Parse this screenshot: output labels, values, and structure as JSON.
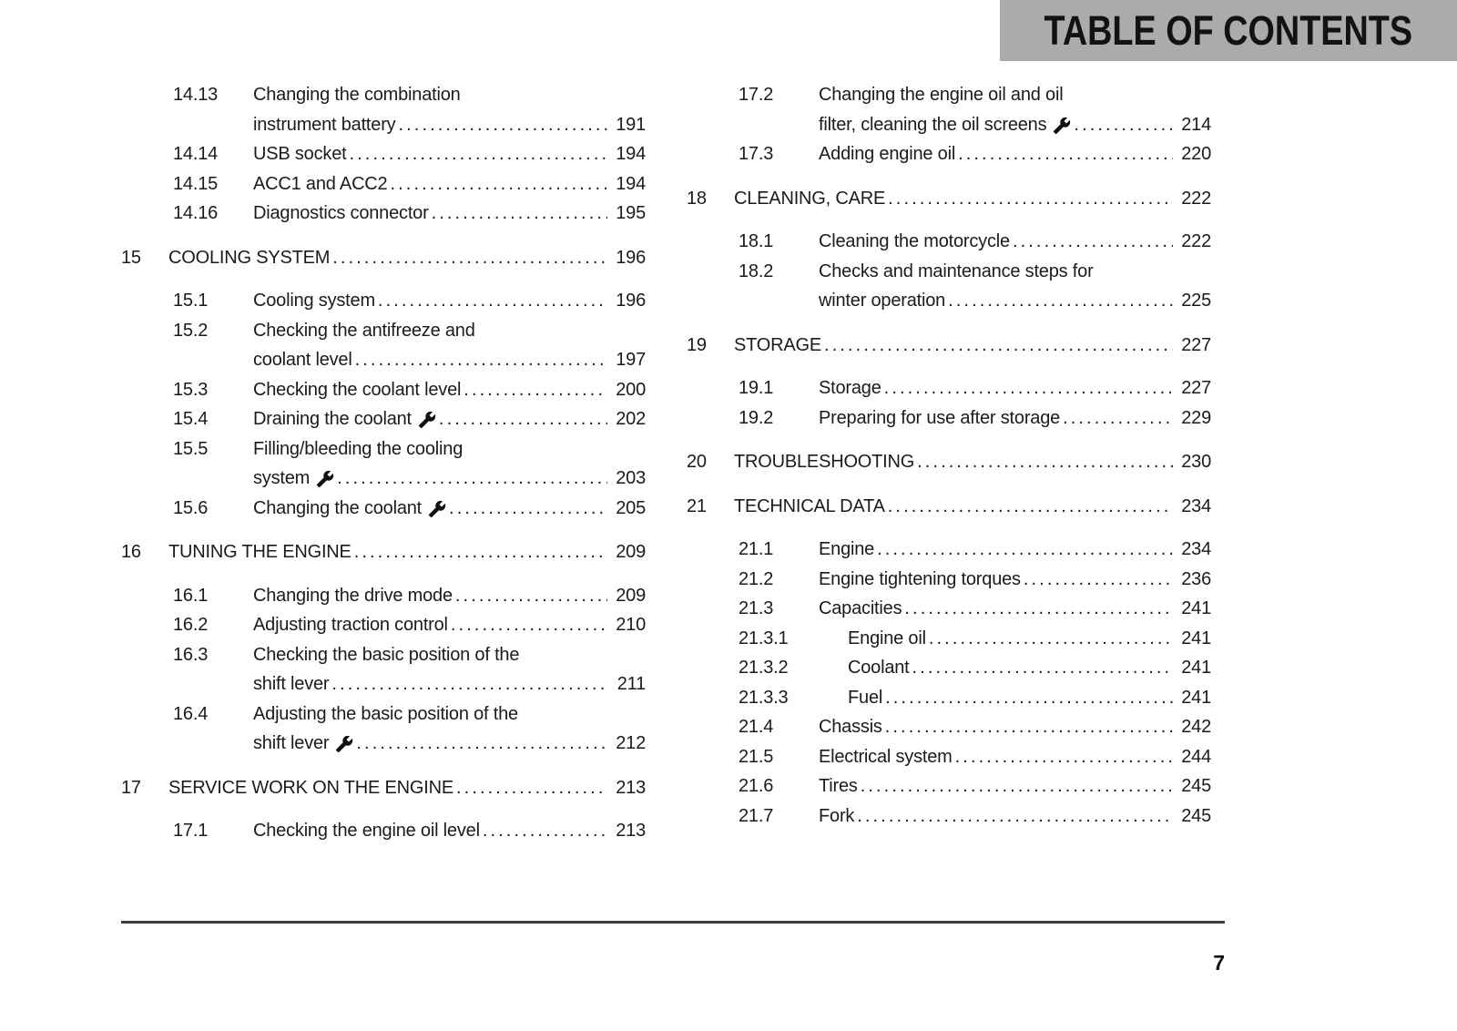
{
  "header": {
    "title": "TABLE OF CONTENTS"
  },
  "page_number": "7",
  "colors": {
    "banner_bg": "#ABABAB",
    "banner_text": "#121212",
    "body_text": "#1B1B1B",
    "rule": "#3D3D3D"
  },
  "icons": {
    "wrench_icon": "open-end-wrench (service work marker)"
  },
  "columns": {
    "left": [
      {
        "level": "sub",
        "num": "14.13",
        "lines": [
          "Changing the combination",
          "instrument battery"
        ],
        "page": "191",
        "wrench": false
      },
      {
        "level": "sub",
        "num": "14.14",
        "lines": [
          "USB socket"
        ],
        "page": "194",
        "wrench": false
      },
      {
        "level": "sub",
        "num": "14.15",
        "lines": [
          "ACC1 and ACC2"
        ],
        "page": "194",
        "wrench": false
      },
      {
        "level": "sub",
        "num": "14.16",
        "lines": [
          "Diagnostics connector"
        ],
        "page": "195",
        "wrench": false
      },
      {
        "level": "section",
        "num": "15",
        "lines": [
          "COOLING SYSTEM"
        ],
        "page": "196",
        "wrench": false
      },
      {
        "level": "sub",
        "num": "15.1",
        "lines": [
          "Cooling system"
        ],
        "page": "196",
        "wrench": false
      },
      {
        "level": "sub",
        "num": "15.2",
        "lines": [
          "Checking the antifreeze and",
          "coolant level"
        ],
        "page": "197",
        "wrench": false
      },
      {
        "level": "sub",
        "num": "15.3",
        "lines": [
          "Checking the coolant level"
        ],
        "page": "200",
        "wrench": false
      },
      {
        "level": "sub",
        "num": "15.4",
        "lines": [
          "Draining the coolant"
        ],
        "page": "202",
        "wrench": true
      },
      {
        "level": "sub",
        "num": "15.5",
        "lines": [
          "Filling/bleeding the cooling",
          "system"
        ],
        "page": "203",
        "wrench": true
      },
      {
        "level": "sub",
        "num": "15.6",
        "lines": [
          "Changing the coolant"
        ],
        "page": "205",
        "wrench": true
      },
      {
        "level": "section",
        "num": "16",
        "lines": [
          "TUNING THE ENGINE"
        ],
        "page": "209",
        "wrench": false
      },
      {
        "level": "sub",
        "num": "16.1",
        "lines": [
          "Changing the drive mode"
        ],
        "page": "209",
        "wrench": false
      },
      {
        "level": "sub",
        "num": "16.2",
        "lines": [
          "Adjusting traction control"
        ],
        "page": "210",
        "wrench": false
      },
      {
        "level": "sub",
        "num": "16.3",
        "lines": [
          "Checking the basic position of the",
          "shift lever"
        ],
        "page": "211",
        "wrench": false
      },
      {
        "level": "sub",
        "num": "16.4",
        "lines": [
          "Adjusting the basic position of the",
          "shift lever"
        ],
        "page": "212",
        "wrench": true
      },
      {
        "level": "section",
        "num": "17",
        "lines": [
          "SERVICE WORK ON THE ENGINE"
        ],
        "page": "213",
        "wrench": false
      },
      {
        "level": "sub",
        "num": "17.1",
        "lines": [
          "Checking the engine oil level"
        ],
        "page": "213",
        "wrench": false
      }
    ],
    "right": [
      {
        "level": "sub",
        "num": "17.2",
        "lines": [
          "Changing the engine oil and oil",
          "filter, cleaning the oil screens"
        ],
        "page": "214",
        "wrench": true
      },
      {
        "level": "sub",
        "num": "17.3",
        "lines": [
          "Adding engine oil"
        ],
        "page": "220",
        "wrench": false
      },
      {
        "level": "section",
        "num": "18",
        "lines": [
          "CLEANING, CARE"
        ],
        "page": "222",
        "wrench": false
      },
      {
        "level": "sub",
        "num": "18.1",
        "lines": [
          "Cleaning the motorcycle"
        ],
        "page": "222",
        "wrench": false
      },
      {
        "level": "sub",
        "num": "18.2",
        "lines": [
          "Checks and maintenance steps for",
          "winter operation"
        ],
        "page": "225",
        "wrench": false
      },
      {
        "level": "section",
        "num": "19",
        "lines": [
          "STORAGE"
        ],
        "page": "227",
        "wrench": false
      },
      {
        "level": "sub",
        "num": "19.1",
        "lines": [
          "Storage"
        ],
        "page": "227",
        "wrench": false
      },
      {
        "level": "sub",
        "num": "19.2",
        "lines": [
          "Preparing for use after storage"
        ],
        "page": "229",
        "wrench": false
      },
      {
        "level": "section",
        "num": "20",
        "lines": [
          "TROUBLESHOOTING"
        ],
        "page": "230",
        "wrench": false
      },
      {
        "level": "section",
        "num": "21",
        "lines": [
          "TECHNICAL DATA"
        ],
        "page": "234",
        "wrench": false
      },
      {
        "level": "sub",
        "num": "21.1",
        "lines": [
          "Engine"
        ],
        "page": "234",
        "wrench": false
      },
      {
        "level": "sub",
        "num": "21.2",
        "lines": [
          "Engine tightening torques"
        ],
        "page": "236",
        "wrench": false
      },
      {
        "level": "sub",
        "num": "21.3",
        "lines": [
          "Capacities"
        ],
        "page": "241",
        "wrench": false
      },
      {
        "level": "subsub",
        "num": "21.3.1",
        "lines": [
          "Engine oil"
        ],
        "page": "241",
        "wrench": false
      },
      {
        "level": "subsub",
        "num": "21.3.2",
        "lines": [
          "Coolant"
        ],
        "page": "241",
        "wrench": false
      },
      {
        "level": "subsub",
        "num": "21.3.3",
        "lines": [
          "Fuel"
        ],
        "page": "241",
        "wrench": false
      },
      {
        "level": "sub",
        "num": "21.4",
        "lines": [
          "Chassis"
        ],
        "page": "242",
        "wrench": false
      },
      {
        "level": "sub",
        "num": "21.5",
        "lines": [
          "Electrical system"
        ],
        "page": "244",
        "wrench": false
      },
      {
        "level": "sub",
        "num": "21.6",
        "lines": [
          "Tires"
        ],
        "page": "245",
        "wrench": false
      },
      {
        "level": "sub",
        "num": "21.7",
        "lines": [
          "Fork"
        ],
        "page": "245",
        "wrench": false
      }
    ]
  }
}
